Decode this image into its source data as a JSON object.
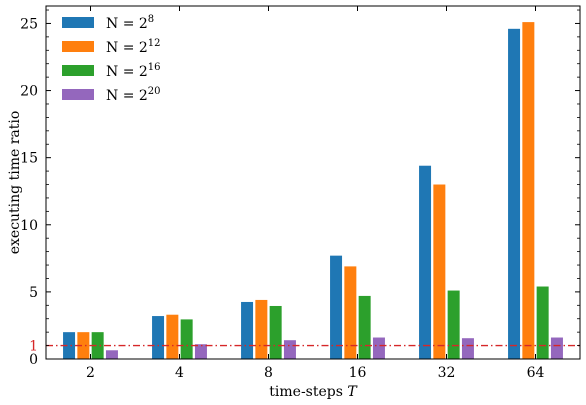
{
  "chart_data": {
    "type": "bar",
    "categories": [
      "2",
      "4",
      "8",
      "16",
      "32",
      "64"
    ],
    "series": [
      {
        "name": "N = 2^8",
        "label_base": "N = 2",
        "label_exp": "8",
        "color": "#1f77b4",
        "values": [
          2.0,
          3.2,
          4.25,
          7.7,
          14.4,
          24.6
        ]
      },
      {
        "name": "N = 2^12",
        "label_base": "N = 2",
        "label_exp": "12",
        "color": "#ff7f0e",
        "values": [
          2.0,
          3.3,
          4.4,
          6.9,
          13.0,
          25.1
        ]
      },
      {
        "name": "N = 2^16",
        "label_base": "N = 2",
        "label_exp": "16",
        "color": "#2ca02c",
        "values": [
          2.0,
          2.95,
          3.95,
          4.7,
          5.1,
          5.4
        ]
      },
      {
        "name": "N = 2^20",
        "label_base": "N = 2",
        "label_exp": "20",
        "color": "#9467bd",
        "values": [
          0.65,
          1.1,
          1.4,
          1.6,
          1.55,
          1.6
        ]
      }
    ],
    "xlabel_text": "time-steps ",
    "xlabel_var": "T",
    "ylabel": "executing time ratio",
    "ylim": [
      0,
      26.3
    ],
    "yticks": [
      0,
      5,
      10,
      15,
      20,
      25
    ],
    "reference_line": {
      "value": 1,
      "label": "1",
      "color": "#d62728"
    },
    "legend_position": "top-left",
    "grid": false
  }
}
